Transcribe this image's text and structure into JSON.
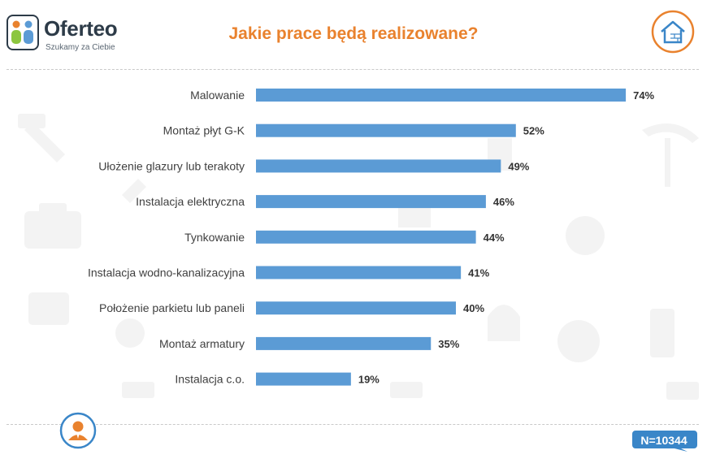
{
  "brand": {
    "name": "Oferteo",
    "tagline": "Szukamy za Ciebie",
    "icon": "oferteo-logo"
  },
  "title": "Jakie prace będą realizowane?",
  "corner_icon": "house-brick-icon",
  "footer": {
    "person_icon": "person-icon",
    "sample_size": "N=10344"
  },
  "colors": {
    "bar": "#5b9bd5",
    "title": "#e9822e",
    "accent": "#e9822e",
    "badge": "#3a86c8"
  },
  "chart_data": {
    "type": "bar",
    "orientation": "horizontal",
    "categories": [
      "Malowanie",
      "Montaż płyt G-K",
      "Ułożenie glazury lub terakoty",
      "Instalacja elektryczna",
      "Tynkowanie",
      "Instalacja wodno-kanalizacyjna",
      "Położenie parkietu lub paneli",
      "Montaż armatury",
      "Instalacja c.o."
    ],
    "values": [
      74,
      52,
      49,
      46,
      44,
      41,
      40,
      35,
      19
    ],
    "value_labels": [
      "74%",
      "52%",
      "49%",
      "46%",
      "44%",
      "41%",
      "40%",
      "35%",
      "19%"
    ],
    "unit": "%",
    "xlim": [
      0,
      80
    ],
    "grid": false,
    "legend": "none",
    "title": "Jakie prace będą realizowane?",
    "xlabel": "",
    "ylabel": ""
  }
}
